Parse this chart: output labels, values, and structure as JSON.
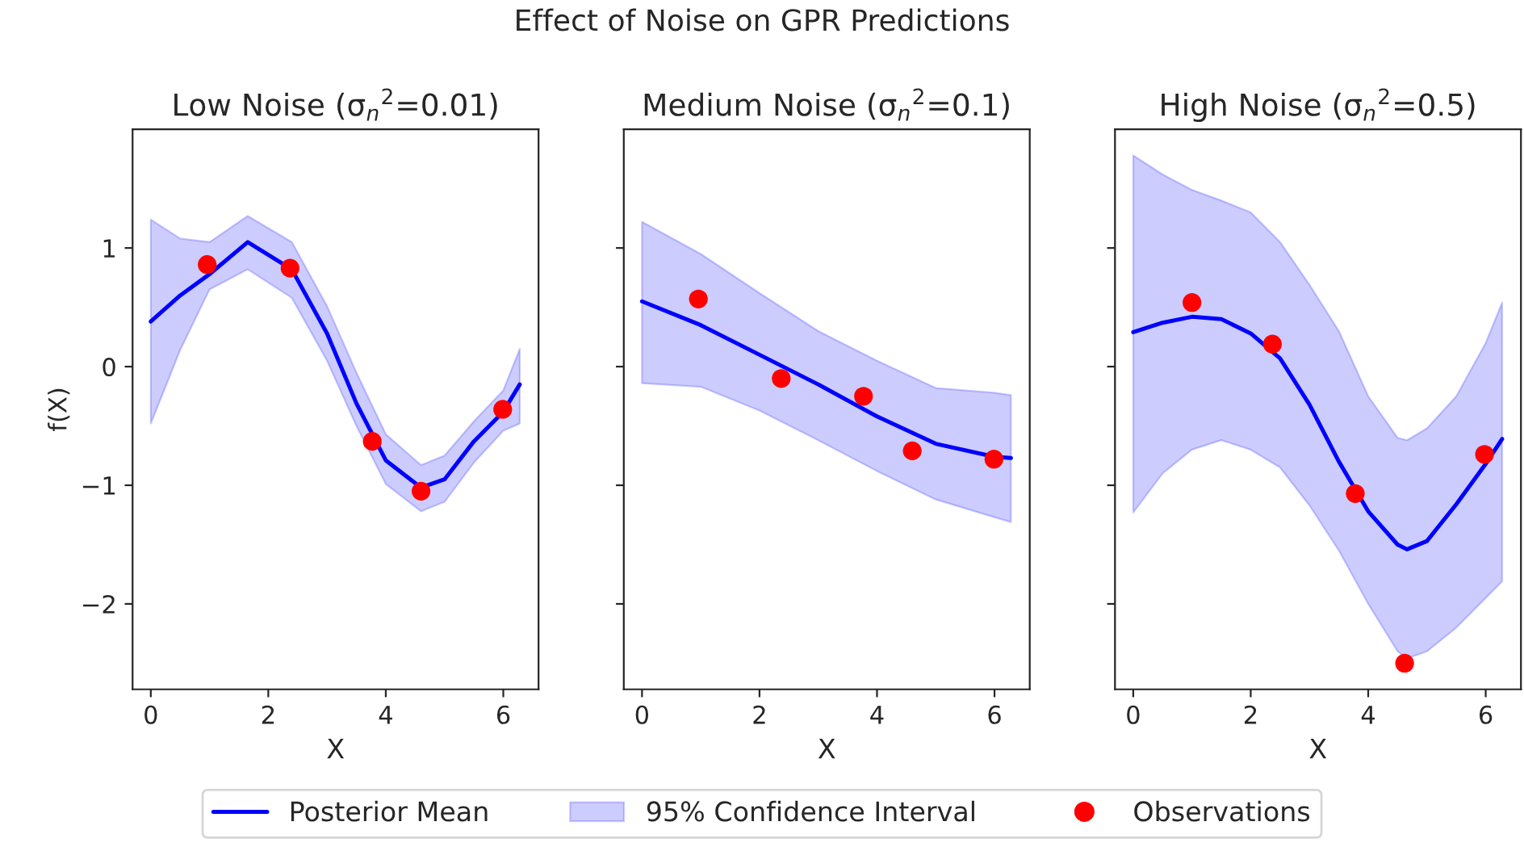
{
  "chart_data": [
    {
      "type": "line",
      "title": "Low Noise (σ$_{n}$$^{2}$=0.01)",
      "xlabel": "X",
      "ylabel": "f(X)",
      "annotations": [
        "Effect of Noise on GPR Predictions",
        "95% Confidence Interval"
      ],
      "legend": "bottom",
      "xlim": [
        -0.31,
        6.6
      ],
      "xticks": [
        0,
        2,
        4,
        6
      ],
      "ylim": [
        -2.72,
        2.0
      ],
      "yticks": [
        -2,
        -1,
        0,
        1
      ],
      "grid": false,
      "series": [
        {
          "name": "Posterior Mean",
          "color": "#0000ff",
          "x": [
            0,
            0.5,
            1,
            1.65,
            2.4,
            3,
            3.5,
            4,
            4.6,
            5,
            5.5,
            6,
            6.28
          ],
          "values": [
            0.38,
            0.6,
            0.78,
            1.05,
            0.82,
            0.28,
            -0.31,
            -0.79,
            -1.02,
            -0.95,
            -0.63,
            -0.38,
            -0.15
          ],
          "lower": [
            -0.48,
            0.14,
            0.65,
            0.82,
            0.58,
            0.05,
            -0.5,
            -0.99,
            -1.22,
            -1.14,
            -0.81,
            -0.54,
            -0.48
          ],
          "upper": [
            1.24,
            1.08,
            1.05,
            1.27,
            1.05,
            0.51,
            -0.05,
            -0.57,
            -0.83,
            -0.75,
            -0.46,
            -0.2,
            0.15
          ]
        },
        {
          "type": "scatter",
          "name": "Observations",
          "color": "#ff0000",
          "x": [
            0.96,
            2.37,
            3.77,
            4.6,
            5.99
          ],
          "values": [
            0.86,
            0.83,
            -0.63,
            -1.05,
            -0.36
          ]
        }
      ]
    },
    {
      "type": "line",
      "title": "Medium Noise (σ$_{n}$$^{2}$=0.1)",
      "xlabel": "X",
      "tick_labels": "x",
      "xlim": [
        -0.31,
        6.6
      ],
      "xticks": [
        0,
        2,
        4,
        6
      ],
      "ylim": [
        -2.72,
        2.0
      ],
      "yticks": [
        -2,
        -1,
        0,
        1
      ],
      "grid": false,
      "series": [
        {
          "color": "#0000ff",
          "x": [
            0,
            1,
            2,
            3,
            4,
            5,
            6,
            6.28
          ],
          "values": [
            0.55,
            0.35,
            0.1,
            -0.15,
            -0.42,
            -0.65,
            -0.76,
            -0.77
          ],
          "lower": [
            -0.14,
            -0.17,
            -0.37,
            -0.62,
            -0.88,
            -1.12,
            -1.27,
            -1.31
          ],
          "upper": [
            1.22,
            0.95,
            0.62,
            0.3,
            0.05,
            -0.18,
            -0.22,
            -0.24
          ]
        },
        {
          "type": "scatter",
          "color": "#ff0000",
          "x": [
            0.96,
            2.37,
            3.77,
            4.6,
            5.99
          ],
          "values": [
            0.57,
            -0.1,
            -0.25,
            -0.71,
            -0.78
          ]
        }
      ]
    },
    {
      "type": "line",
      "title": "High Noise (σ$_{n}$$^{2}$=0.5)",
      "xlabel": "X",
      "tick_labels": "x",
      "xlim": [
        -0.31,
        6.6
      ],
      "xticks": [
        0,
        2,
        4,
        6
      ],
      "ylim": [
        -2.72,
        2.0
      ],
      "yticks": [
        -2,
        -1,
        0,
        1
      ],
      "grid": false,
      "series": [
        {
          "color": "#0000ff",
          "x": [
            0,
            0.5,
            1,
            1.5,
            2,
            2.5,
            3,
            3.5,
            4,
            4.5,
            4.66,
            5,
            5.5,
            6,
            6.28
          ],
          "values": [
            0.29,
            0.37,
            0.42,
            0.4,
            0.28,
            0.07,
            -0.32,
            -0.8,
            -1.22,
            -1.5,
            -1.54,
            -1.47,
            -1.16,
            -0.82,
            -0.61
          ],
          "lower": [
            -1.23,
            -0.9,
            -0.7,
            -0.62,
            -0.7,
            -0.85,
            -1.17,
            -1.55,
            -2.0,
            -2.4,
            -2.46,
            -2.4,
            -2.2,
            -1.95,
            -1.81
          ],
          "upper": [
            1.78,
            1.62,
            1.49,
            1.4,
            1.3,
            1.05,
            0.69,
            0.3,
            -0.25,
            -0.6,
            -0.62,
            -0.52,
            -0.25,
            0.2,
            0.54
          ]
        },
        {
          "type": "scatter",
          "color": "#ff0000",
          "x": [
            1.0,
            2.37,
            3.78,
            4.62,
            5.98
          ],
          "values": [
            0.54,
            0.19,
            -1.07,
            -2.5,
            -0.74
          ]
        }
      ]
    }
  ]
}
